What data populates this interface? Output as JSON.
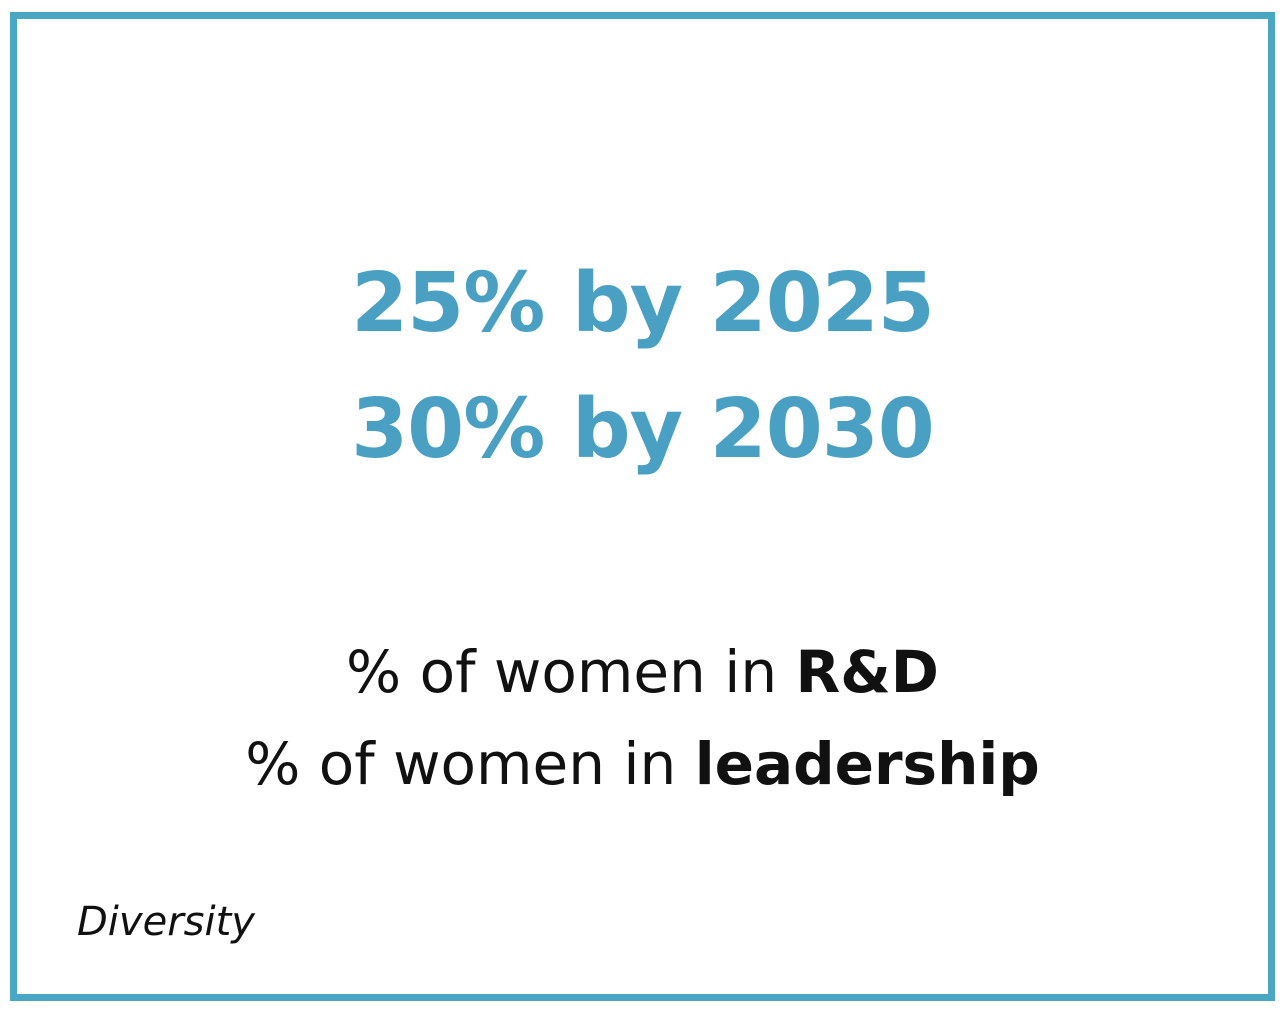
{
  "accent_color": "#4aa7c4",
  "targets": [
    "25% by 2025",
    "30% by 2030"
  ],
  "metrics": [
    {
      "prefix": "% of women in ",
      "emphasis": "R&D"
    },
    {
      "prefix": "% of women in ",
      "emphasis": "leadership"
    }
  ],
  "footer_label": "Diversity"
}
